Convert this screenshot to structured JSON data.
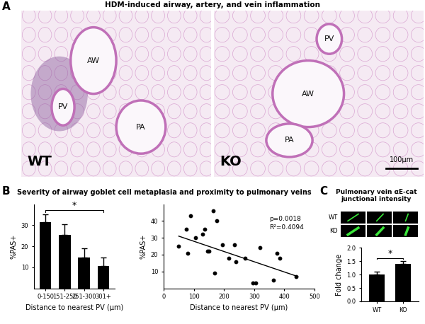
{
  "figure": {
    "A": {
      "letter": "A",
      "title": "HDM-induced airway, artery, and vein inflammation",
      "images": [
        {
          "label": "WT",
          "structures": [
            "PV",
            "AW",
            "PA"
          ]
        },
        {
          "label": "KO",
          "structures": [
            "PV",
            "AW",
            "PA"
          ],
          "scale_bar": "100µm"
        }
      ]
    },
    "B": {
      "letter": "B",
      "title": "Severity of airway goblet cell metaplasia and proximity to pulmonary veins"
    },
    "C": {
      "letter": "C",
      "title": "Pulmonary vein αE-cat junctional intensity",
      "image_rows": [
        "WT",
        "KO"
      ]
    }
  },
  "chart_data": [
    {
      "type": "bar",
      "categories": [
        "0-150",
        "151-250",
        "251-300",
        "301+"
      ],
      "values": [
        31.5,
        25.5,
        14.5,
        10.5
      ],
      "errors": [
        3.5,
        5,
        4.5,
        4
      ],
      "color": "#000000",
      "ylim": [
        0,
        40
      ],
      "yticks": [
        10,
        20,
        30
      ],
      "ylabel": "%PAS+",
      "xlabel": "Distance to nearest PV (µm)",
      "significance": {
        "between": [
          "0-150",
          "301+"
        ],
        "label": "*"
      }
    },
    {
      "type": "scatter",
      "x": [
        50,
        75,
        80,
        90,
        105,
        130,
        135,
        145,
        150,
        165,
        170,
        175,
        195,
        215,
        235,
        240,
        270,
        295,
        305,
        320,
        365,
        375,
        385,
        440
      ],
      "values": [
        25,
        35,
        21,
        43,
        30,
        32,
        35,
        22,
        22,
        46,
        9,
        40,
        26,
        18,
        26,
        16,
        18,
        3,
        3,
        24,
        5,
        21,
        18,
        7
      ],
      "color": "#000000",
      "marker": "o",
      "xlim": [
        0,
        500
      ],
      "xticks": [
        0,
        100,
        200,
        300,
        400,
        500
      ],
      "ylim": [
        0,
        50
      ],
      "yticks": [
        10,
        20,
        30,
        40
      ],
      "xlabel": "Distance to nearest PV (µm)",
      "ylabel": "%PAS+",
      "annotations": [
        "p=0.0018",
        "R²=0.4094"
      ],
      "trend_line": {
        "x": [
          50,
          445
        ],
        "values": [
          31,
          7
        ]
      }
    },
    {
      "type": "bar",
      "categories": [
        "WT",
        "KO"
      ],
      "values": [
        1.0,
        1.4
      ],
      "errors": [
        0.12,
        0.12
      ],
      "color": "#000000",
      "ylim": [
        0.0,
        2.0
      ],
      "yticks": [
        0.0,
        0.5,
        1.0,
        1.5,
        2.0
      ],
      "ylabel": "Fold change",
      "significance": {
        "between": [
          "WT",
          "KO"
        ],
        "label": "*"
      }
    }
  ]
}
